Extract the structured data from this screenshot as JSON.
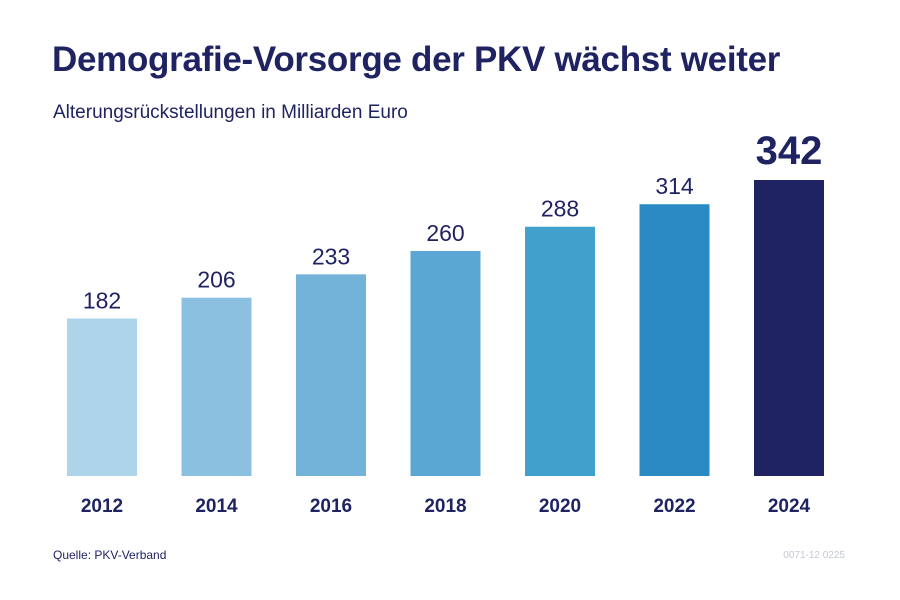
{
  "chart_data": {
    "type": "bar",
    "title": "Demografie-Vorsorge der PKV wächst weiter",
    "subtitle": "Alterungsrückstellungen in Milliarden Euro",
    "categories": [
      "2012",
      "2014",
      "2016",
      "2018",
      "2020",
      "2022",
      "2024"
    ],
    "values": [
      182,
      206,
      233,
      260,
      288,
      314,
      342
    ],
    "bar_colors": [
      "#aed4ea",
      "#8cc0e0",
      "#74b3d9",
      "#5ba7d3",
      "#42a0cc",
      "#2a8bc4",
      "#1f2361"
    ],
    "highlight_index": 6,
    "ylim": [
      0,
      342
    ],
    "grid": false,
    "xlabel": "",
    "ylabel": ""
  },
  "source": "Quelle: PKV-Verband",
  "code": "0071-12 0225",
  "colors": {
    "text": "#1f2361"
  }
}
